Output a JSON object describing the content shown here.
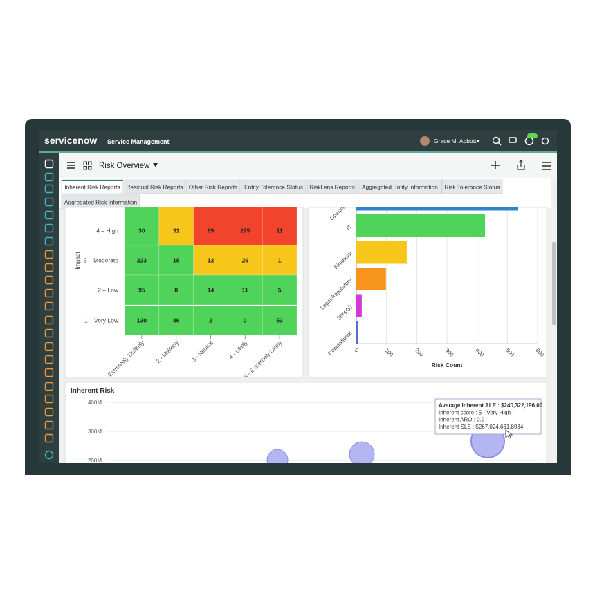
{
  "header": {
    "logo": "servicenow",
    "product": "Service Management",
    "user": "Grace M. Abbott"
  },
  "toolbar": {
    "title": "Risk Overview"
  },
  "tabs": [
    "Inherent Risk Reports",
    "Residual Risk Reports",
    "Other Risk Reports",
    "Entity Tolerance Status",
    "RiskLens Reports",
    "Aggregated Entity Information",
    "Risk Tolerance Status",
    "Aggregated Risk Information"
  ],
  "heatmap": {
    "type": "heatmap",
    "y_label": "Impact",
    "rows": [
      "4 – High",
      "3 – Moderate",
      "2 – Low",
      "1 – Very Low"
    ],
    "columns": [
      "1 - Extremely Unlikely",
      "2 - Unlikely",
      "3 - Neutral",
      "4 - Likely",
      "5 - Extremely Likely"
    ],
    "values": [
      [
        30,
        31,
        89,
        275,
        11
      ],
      [
        223,
        18,
        12,
        26,
        1
      ],
      [
        95,
        8,
        14,
        11,
        5
      ],
      [
        130,
        86,
        2,
        0,
        53
      ]
    ],
    "colors": [
      [
        "#4fd35b",
        "#f7c61a",
        "#f2432c",
        "#f2432c",
        "#f2432c"
      ],
      [
        "#4fd35b",
        "#4fd35b",
        "#f7c61a",
        "#f7c61a",
        "#f7c61a"
      ],
      [
        "#4fd35b",
        "#4fd35b",
        "#4fd35b",
        "#4fd35b",
        "#4fd35b"
      ],
      [
        "#4fd35b",
        "#4fd35b",
        "#4fd35b",
        "#4fd35b",
        "#4fd35b"
      ]
    ]
  },
  "bar_chart": {
    "type": "bar",
    "orientation": "horizontal",
    "categories": [
      "Operational",
      "IT",
      "Financial",
      "Legal/Regulatory",
      "(empty)",
      "Reputational"
    ],
    "values": [
      535,
      426,
      167,
      98,
      18,
      5
    ],
    "colors": [
      "#2f86c6",
      "#4fd35b",
      "#f7c61a",
      "#f7941d",
      "#d63ad6",
      "#5b6bd5"
    ],
    "xlim": [
      0,
      600
    ],
    "xticks": [
      0,
      100,
      200,
      300,
      400,
      500,
      600
    ],
    "x_label": "Risk Count",
    "grid": true
  },
  "bubble_chart": {
    "type": "scatter",
    "title": "Inherent Risk",
    "ylim": [
      190000000,
      415000000
    ],
    "yticks": [
      {
        "value": 400000000,
        "label": "400M"
      },
      {
        "value": 300000000,
        "label": "300M"
      },
      {
        "value": 200000000,
        "label": "200M"
      }
    ],
    "values": [
      202000000,
      221000000,
      267024661.8934
    ],
    "sizes": [
      15,
      18,
      24
    ],
    "color": "#b3b6f0",
    "grid": true,
    "tooltip": [
      "Average Inherent ALE : $240,322,196.00",
      "Inherent score : 5 - Very High",
      "Inherent ARO : 0.9",
      "Inherent SLE : $267,024,661.8934"
    ]
  }
}
